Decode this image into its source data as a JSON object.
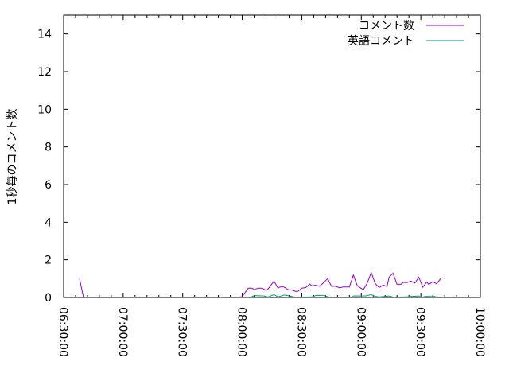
{
  "chart_data": {
    "type": "line",
    "title": "",
    "xlabel": "",
    "ylabel": "1秒毎のコメント数",
    "xlim": [
      "06:30:00",
      "10:00:00"
    ],
    "ylim": [
      0,
      15
    ],
    "x_ticks": [
      "06:30:00",
      "07:00:00",
      "07:30:00",
      "08:00:00",
      "08:30:00",
      "09:00:00",
      "09:30:00",
      "10:00:00"
    ],
    "y_ticks": [
      "0",
      "2",
      "4",
      "6",
      "8",
      "10",
      "12",
      "14"
    ],
    "grid": false,
    "legend": "top-right",
    "series": [
      {
        "name": "コメント数",
        "color": "#9400d3",
        "points": [
          [
            "06:38",
            1.0
          ],
          [
            "06:40",
            0
          ],
          null,
          [
            "07:58",
            0
          ],
          [
            "08:00",
            0.05
          ],
          [
            "08:03",
            0.5
          ],
          [
            "08:05",
            0.5
          ],
          [
            "08:06",
            0.42
          ],
          [
            "08:08",
            0.5
          ],
          [
            "08:10",
            0.5
          ],
          [
            "08:12",
            0.38
          ],
          [
            "08:13",
            0.45
          ],
          [
            "08:16",
            0.87
          ],
          [
            "08:18",
            0.5
          ],
          [
            "08:19",
            0.56
          ],
          [
            "08:21",
            0.56
          ],
          [
            "08:23",
            0.42
          ],
          [
            "08:25",
            0.4
          ],
          [
            "08:27",
            0.32
          ],
          [
            "08:28",
            0.32
          ],
          [
            "08:30",
            0.5
          ],
          [
            "08:32",
            0.53
          ],
          [
            "08:34",
            0.72
          ],
          [
            "08:35",
            0.62
          ],
          [
            "08:37",
            0.65
          ],
          [
            "08:39",
            0.59
          ],
          [
            "08:41",
            0.79
          ],
          [
            "08:43",
            1.0
          ],
          [
            "08:45",
            0.59
          ],
          [
            "08:47",
            0.6
          ],
          [
            "08:49",
            0.52
          ],
          [
            "08:51",
            0.56
          ],
          [
            "08:54",
            0.56
          ],
          [
            "08:56",
            1.19
          ],
          [
            "08:58",
            0.62
          ],
          [
            "09:01",
            0.41
          ],
          [
            "09:03",
            0.77
          ],
          [
            "09:05",
            1.32
          ],
          [
            "09:07",
            0.74
          ],
          [
            "09:09",
            0.53
          ],
          [
            "09:11",
            0.66
          ],
          [
            "09:13",
            0.59
          ],
          [
            "09:14",
            1.08
          ],
          [
            "09:16",
            1.29
          ],
          [
            "09:18",
            0.7
          ],
          [
            "09:20",
            0.7
          ],
          [
            "09:21",
            0.8
          ],
          [
            "09:23",
            0.8
          ],
          [
            "09:25",
            0.87
          ],
          [
            "09:27",
            0.77
          ],
          [
            "09:29",
            1.08
          ],
          [
            "09:31",
            0.55
          ],
          [
            "09:33",
            0.83
          ],
          [
            "09:34",
            0.69
          ],
          [
            "09:36",
            0.84
          ],
          [
            "09:38",
            0.73
          ],
          [
            "09:40",
            1.01
          ]
        ]
      },
      {
        "name": "英語コメント",
        "color": "#009e73",
        "points": [
          [
            "08:04",
            0
          ],
          [
            "08:06",
            0.1
          ],
          [
            "08:11",
            0.08
          ],
          [
            "08:13",
            0.03
          ],
          [
            "08:16",
            0.15
          ],
          [
            "08:18",
            0.03
          ],
          [
            "08:21",
            0.13
          ],
          [
            "08:24",
            0.08
          ],
          [
            "08:27",
            0
          ],
          [
            "08:35",
            0.03
          ],
          [
            "08:37",
            0.1
          ],
          [
            "08:41",
            0.12
          ],
          [
            "08:44",
            0
          ],
          [
            "08:55",
            0
          ],
          [
            "08:56",
            0.08
          ],
          [
            "09:02",
            0.08
          ],
          [
            "09:05",
            0.15
          ],
          [
            "09:07",
            0.05
          ],
          [
            "09:09",
            0.03
          ],
          [
            "09:14",
            0.08
          ],
          [
            "09:17",
            0
          ],
          [
            "09:25",
            0.05
          ],
          [
            "09:29",
            0.08
          ],
          [
            "09:30",
            0
          ],
          [
            "09:32",
            0.05
          ],
          [
            "09:37",
            0.05
          ],
          [
            "09:39",
            0
          ]
        ]
      }
    ]
  }
}
